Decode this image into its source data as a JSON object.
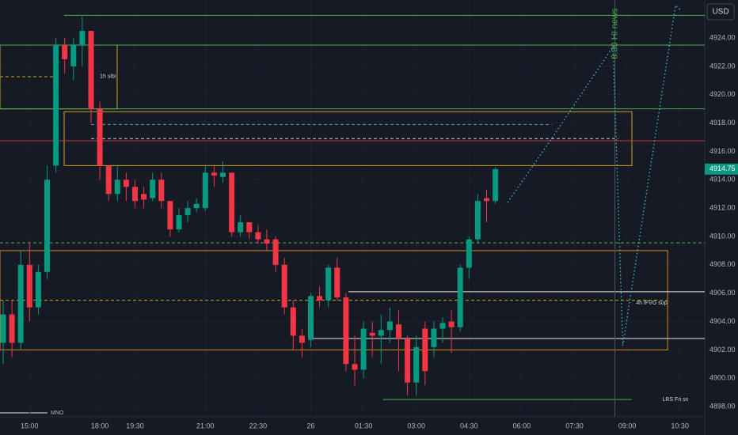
{
  "chart_data": {
    "type": "candlestick",
    "currency": "USD",
    "x": [
      0,
      1,
      2,
      3,
      4,
      5,
      6,
      7,
      8,
      9,
      10,
      11,
      12,
      13,
      14,
      15,
      16,
      17,
      18,
      19,
      20,
      21,
      22,
      23,
      24,
      25,
      26,
      27,
      28,
      29,
      30,
      31,
      32,
      33,
      34,
      35,
      36,
      37,
      38,
      39,
      40,
      41,
      42,
      43,
      44,
      45,
      46,
      47,
      48,
      49,
      50,
      51,
      52,
      53,
      54,
      55,
      56
    ],
    "open": [
      4902.5,
      4904.5,
      4902.5,
      4908,
      4905,
      4907.5,
      4915,
      4923.5,
      4922,
      4923.5,
      4924.5,
      4919,
      4915,
      4913,
      4914,
      4913.5,
      4913,
      4912.7,
      4914,
      4912.5,
      4910.5,
      4911.5,
      4912,
      4912,
      4914.5,
      4914.2,
      4914.5,
      4910.3,
      4911,
      4910.3,
      4909.8,
      4909.8,
      4908,
      4905,
      4903,
      4902.7,
      4905.8,
      4905.5,
      4907.8,
      4905.7,
      4901,
      4900.6,
      4903.2,
      4903,
      4903.4,
      4903.8,
      4902.8,
      4899.7,
      4903.5,
      4902.2,
      4903.5,
      4904,
      4903.6,
      4907.8,
      4909.8,
      4912.7,
      4912.5
    ],
    "high": [
      4905.5,
      4905.5,
      4909,
      4909.5,
      4908,
      4915,
      4924,
      4924,
      4924,
      4925.5,
      4924.5,
      4919.5,
      4915,
      4915,
      4914.5,
      4914,
      4913.5,
      4914.5,
      4914.5,
      4912.5,
      4912,
      4912.5,
      4912.7,
      4915,
      4915,
      4915.3,
      4914.5,
      4911.5,
      4911,
      4910.8,
      4910.5,
      4910,
      4908.5,
      4905.5,
      4903.5,
      4906,
      4906.5,
      4908,
      4908.5,
      4906,
      4903,
      4904,
      4904,
      4904.5,
      4905,
      4904.8,
      4903,
      4903,
      4904,
      4904,
      4904.3,
      4904.8,
      4908,
      4910,
      4913,
      4913.3,
      4914.9
    ],
    "low": [
      4901,
      4901.5,
      4902,
      4904,
      4904.5,
      4907,
      4914.5,
      4921.5,
      4921,
      4922,
      4918,
      4914,
      4912.5,
      4912.5,
      4912.5,
      4912,
      4912,
      4912.5,
      4912,
      4910,
      4910.3,
      4911,
      4911.7,
      4911.8,
      4913.5,
      4913.8,
      4910,
      4910,
      4909.8,
      4909.5,
      4909,
      4907.5,
      4904.5,
      4902,
      4901.5,
      4902.2,
      4905,
      4905,
      4905.5,
      4900.5,
      4899.5,
      4900,
      4901.5,
      4901,
      4902.5,
      4900.5,
      4898.8,
      4898.8,
      4899.5,
      4901.5,
      4902.5,
      4901.8,
      4903.3,
      4907,
      4909.5,
      4911,
      4912.3
    ],
    "close": [
      4904.5,
      4902.5,
      4908,
      4905,
      4907.5,
      4914,
      4923.5,
      4922.5,
      4923.5,
      4924.5,
      4919,
      4915,
      4913,
      4914,
      4913.5,
      4912.5,
      4912.6,
      4914,
      4912.5,
      4910.5,
      4911.5,
      4912,
      4912.3,
      4914.5,
      4914.3,
      4914.5,
      4910.3,
      4911,
      4910.3,
      4909.8,
      4909.5,
      4908,
      4905,
      4903,
      4902.5,
      4905.8,
      4905.5,
      4907.8,
      4905.7,
      4901,
      4900.6,
      4903.5,
      4903,
      4903.4,
      4904,
      4902.8,
      4899.7,
      4902.2,
      4900.5,
      4903.5,
      4903.9,
      4903.6,
      4907.8,
      4909.8,
      4912.5,
      4912.5,
      4914.75
    ],
    "up_color": "#089981",
    "down_color": "#f23645",
    "xlim": [
      -0.36,
      79.82
    ],
    "xticks": [
      {
        "value": 3,
        "label": "15:00"
      },
      {
        "value": 11,
        "label": "18:00"
      },
      {
        "value": 15,
        "label": "19:30"
      },
      {
        "value": 23,
        "label": "21:00"
      },
      {
        "value": 29,
        "label": "22:30"
      },
      {
        "value": 35,
        "label": "26"
      },
      {
        "value": 41,
        "label": "01:30"
      },
      {
        "value": 47,
        "label": "03:00"
      },
      {
        "value": 53,
        "label": "04:30"
      },
      {
        "value": 59,
        "label": "06:00"
      },
      {
        "value": 65,
        "label": "07:30"
      },
      {
        "value": 71,
        "label": "09:00"
      },
      {
        "value": 77,
        "label": "10:30"
      }
    ],
    "ylim": [
      4897.67,
      4926.68
    ],
    "yticks": [
      {
        "value": 4898,
        "label": "4898.00"
      },
      {
        "value": 4900,
        "label": "4900.00"
      },
      {
        "value": 4902,
        "label": "4902.00"
      },
      {
        "value": 4904,
        "label": "4904.00"
      },
      {
        "value": 4906,
        "label": "4906.00"
      },
      {
        "value": 4908,
        "label": "4908.00"
      },
      {
        "value": 4910,
        "label": "4910.00"
      },
      {
        "value": 4912,
        "label": "4912.00"
      },
      {
        "value": 4914,
        "label": "4914.00"
      },
      {
        "value": 4916,
        "label": "4916.00"
      },
      {
        "value": 4918,
        "label": "4918.00"
      },
      {
        "value": 4920,
        "label": "4920.00"
      },
      {
        "value": 4922,
        "label": "4922.00"
      },
      {
        "value": 4924,
        "label": "4924.00"
      }
    ],
    "grid": true,
    "price_tag": {
      "value": 4914.75,
      "label": "4914.75",
      "color": "#089981"
    },
    "boxes": [
      {
        "x": [
          -0.36,
          12.97
        ],
        "y": [
          4919.0,
          4923.5
        ],
        "color": "#c9a227"
      },
      {
        "x": [
          6.94,
          71.53
        ],
        "y": [
          4915.0,
          4918.8
        ],
        "color": "#c9a227"
      },
      {
        "x": [
          -0.36,
          75.6
        ],
        "y": [
          4902.0,
          4909.0
        ],
        "color": "#d08a1e"
      }
    ],
    "levels": [
      {
        "price": 4925.6,
        "x": [
          6.94,
          79.82
        ],
        "color": "#4caf50",
        "dash": false
      },
      {
        "price": 4923.5,
        "x": [
          -0.36,
          79.82
        ],
        "color": "#4caf50",
        "dash": false
      },
      {
        "price": 4919.0,
        "x": [
          -0.36,
          79.82
        ],
        "color": "#4caf50",
        "dash": false
      },
      {
        "price": 4916.75,
        "x": [
          -0.36,
          79.82
        ],
        "color": "#c2334a",
        "dash": false
      },
      {
        "price": 4898.5,
        "x": [
          43.2,
          71.5
        ],
        "color": "#4caf50",
        "dash": false
      },
      {
        "price": 4916.9,
        "x": [
          10,
          70
        ],
        "color": "#cfd3dc",
        "dash": true
      },
      {
        "price": 4917.9,
        "x": [
          10,
          62.4
        ],
        "color": "#4aa3c8",
        "dash": true
      },
      {
        "price": 4909.55,
        "x": [
          -0.36,
          79.82
        ],
        "color": "#4caf50",
        "dash": true
      },
      {
        "price": 4921.27,
        "x": [
          -0.36,
          6.5
        ],
        "color": "#c9a227",
        "dash": true
      },
      {
        "price": 4905.5,
        "x": [
          -0.36,
          75.6
        ],
        "color": "#c9a227",
        "dash": true
      },
      {
        "price": 4902.8,
        "x": [
          35.2,
          79.82
        ],
        "color": "#e6e6e6",
        "dash": false
      },
      {
        "price": 4906.1,
        "x": [
          39.3,
          79.82
        ],
        "color": "#e6e6e6",
        "dash": false
      }
    ],
    "projection": {
      "x": [
        57.4,
        62.4,
        69.4,
        70.5,
        76.5,
        77
      ],
      "y": [
        4912.4,
        4916.9,
        4923.4,
        4902.3,
        4926.3,
        4926.0
      ],
      "color": "#3fc1d0"
    },
    "news": {
      "label": "8:30 HI news",
      "x": 69.6,
      "y": 4924.3,
      "color": "#4caf50"
    },
    "annotations": [
      {
        "label": "1h sibi",
        "x": 11,
        "y": 4921.3
      },
      {
        "label": "4h IFVG sup",
        "x": 72,
        "y": 4905.3
      },
      {
        "label": "LRS Fri ss",
        "x": 75,
        "y": 4898.5
      }
    ],
    "footer_label": "MNO"
  }
}
